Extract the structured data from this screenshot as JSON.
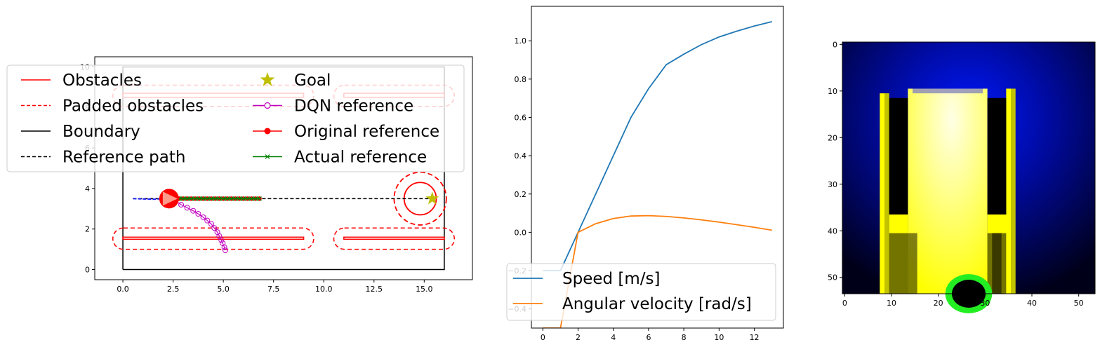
{
  "chart_data": [
    {
      "type": "line",
      "title": "",
      "xlim": [
        -1.4,
        17.4
      ],
      "ylim": [
        -0.5,
        10.5
      ],
      "x_ticks": [
        0,
        2.5,
        5,
        7.5,
        10,
        12.5,
        15
      ],
      "x_tick_labels": [
        "0.0",
        "2.5",
        "5.0",
        "7.5",
        "10.0",
        "12.5",
        "15.0"
      ],
      "y_ticks": [
        0,
        2,
        4,
        6,
        8,
        10
      ],
      "y_tick_labels": [
        "0",
        "2",
        "4",
        "6",
        "8",
        "10"
      ],
      "legend_position": "top-left",
      "legend": [
        {
          "label": "Obstacles",
          "color": "#ff0000",
          "style": "solid",
          "marker": "none"
        },
        {
          "label": "Padded obstacles",
          "color": "#ff0000",
          "style": "dashed",
          "marker": "none"
        },
        {
          "label": "Boundary",
          "color": "#000000",
          "style": "solid",
          "marker": "none"
        },
        {
          "label": "Reference path",
          "color": "#000000",
          "style": "dashed",
          "marker": "none"
        },
        {
          "label": "Goal",
          "color": "#bfbf00",
          "style": "none",
          "marker": "star"
        },
        {
          "label": "DQN reference",
          "color": "#bf00bf",
          "style": "solid",
          "marker": "open-circle"
        },
        {
          "label": "Original reference",
          "color": "#ff0000",
          "style": "solid",
          "marker": "filled-circle"
        },
        {
          "label": "Actual reference",
          "color": "#008000",
          "style": "solid",
          "marker": "x"
        }
      ],
      "boundary": [
        [
          0,
          0
        ],
        [
          16,
          0
        ],
        [
          16,
          10
        ],
        [
          0,
          10
        ],
        [
          0,
          0
        ]
      ],
      "obstacles": [
        {
          "x0": 0,
          "x1": 9,
          "y0": 8.5,
          "y1": 8.7
        },
        {
          "x0": 11,
          "x1": 16,
          "y0": 8.5,
          "y1": 8.7
        },
        {
          "x0": 0,
          "x1": 9,
          "y0": 1.5,
          "y1": 1.6
        },
        {
          "x0": 11,
          "x1": 16,
          "y0": 1.5,
          "y1": 1.6
        }
      ],
      "padded_obstacles": [
        {
          "x0": -0.5,
          "x1": 9.5,
          "y0": 8.05,
          "y1": 9.1
        },
        {
          "x0": 10.5,
          "x1": 16.5,
          "y0": 8.05,
          "y1": 9.1
        },
        {
          "x0": -0.5,
          "x1": 9.5,
          "y0": 1.0,
          "y1": 2.05
        },
        {
          "x0": 10.5,
          "x1": 16.5,
          "y0": 1.0,
          "y1": 2.05
        }
      ],
      "goal_circle": {
        "cx": 14.8,
        "cy": 3.5,
        "r_inner": 0.8,
        "r_padded": 1.3
      },
      "reference_path": {
        "x": [
          0.5,
          15.4
        ],
        "y": [
          3.5,
          3.5
        ]
      },
      "goal": {
        "x": 15.4,
        "y": 3.5
      },
      "robot": {
        "x": 2.3,
        "y": 3.5
      },
      "dqn_reference": {
        "x": [
          2.3,
          2.6,
          2.9,
          3.2,
          3.5,
          3.75,
          4.0,
          4.2,
          4.4,
          4.55,
          4.7,
          4.8,
          4.9,
          4.97,
          5.05,
          5.1
        ],
        "y": [
          3.5,
          3.4,
          3.2,
          3.05,
          2.9,
          2.75,
          2.58,
          2.42,
          2.25,
          2.05,
          1.85,
          1.65,
          1.45,
          1.3,
          1.1,
          0.95
        ]
      },
      "original_reference": {
        "x": [
          2.6,
          2.8,
          3.0,
          3.2,
          3.4,
          3.6,
          3.8,
          4.0,
          4.2,
          4.4,
          4.6,
          4.8,
          5.0,
          5.2,
          5.4,
          5.6,
          5.8,
          6.0,
          6.2,
          6.4,
          6.6,
          6.8
        ],
        "y": [
          3.5,
          3.5,
          3.5,
          3.5,
          3.5,
          3.5,
          3.5,
          3.5,
          3.5,
          3.5,
          3.5,
          3.5,
          3.5,
          3.5,
          3.5,
          3.5,
          3.5,
          3.5,
          3.5,
          3.5,
          3.5,
          3.5
        ]
      },
      "actual_reference": {
        "x": [
          2.6,
          2.8,
          3.0,
          3.2,
          3.4,
          3.6,
          3.8,
          4.0,
          4.2,
          4.4,
          4.6,
          4.8,
          5.0,
          5.2,
          5.4,
          5.6,
          5.8,
          6.0,
          6.2,
          6.4,
          6.6,
          6.8
        ],
        "y": [
          3.5,
          3.5,
          3.5,
          3.5,
          3.5,
          3.5,
          3.5,
          3.5,
          3.5,
          3.5,
          3.5,
          3.5,
          3.5,
          3.5,
          3.5,
          3.5,
          3.5,
          3.5,
          3.5,
          3.5,
          3.5,
          3.5
        ]
      },
      "trajectory": {
        "x": [
          0.5,
          1.0,
          1.5,
          2.0,
          2.3
        ],
        "y": [
          3.5,
          3.48,
          3.47,
          3.49,
          3.5
        ]
      }
    },
    {
      "type": "line",
      "title": "",
      "xlim": [
        -0.65,
        13.65
      ],
      "ylim": [
        -0.5,
        1.18
      ],
      "x_ticks": [
        0,
        2,
        4,
        6,
        8,
        10,
        12
      ],
      "x_tick_labels": [
        "0",
        "2",
        "4",
        "6",
        "8",
        "10",
        "12"
      ],
      "y_ticks": [
        -0.4,
        -0.2,
        0.0,
        0.2,
        0.4,
        0.6,
        0.8,
        1.0
      ],
      "y_tick_labels": [
        "−0.4",
        "−0.2",
        "0.0",
        "0.2",
        "0.4",
        "0.6",
        "0.8",
        "1.0"
      ],
      "legend_position": "bottom-left",
      "series": [
        {
          "name": "Speed [m/s]",
          "color": "#1f77b4",
          "x": [
            0,
            1,
            2,
            3,
            4,
            5,
            6,
            7,
            8,
            9,
            10,
            11,
            12,
            13
          ],
          "y": [
            -0.2,
            -0.2,
            0.0,
            0.2,
            0.4,
            0.6,
            0.75,
            0.875,
            0.93,
            0.98,
            1.02,
            1.05,
            1.077,
            1.1
          ]
        },
        {
          "name": "Angular velocity [rad/s]",
          "color": "#ff7f0e",
          "x": [
            0,
            1,
            2,
            3,
            4,
            5,
            6,
            7,
            8,
            9,
            10,
            11,
            12,
            13
          ],
          "y": [
            -0.5,
            -0.5,
            0.0,
            0.045,
            0.072,
            0.085,
            0.087,
            0.083,
            0.075,
            0.065,
            0.053,
            0.04,
            0.026,
            0.011
          ]
        }
      ]
    },
    {
      "type": "heatmap",
      "title": "",
      "width": 54,
      "height": 54,
      "x_ticks": [
        0,
        10,
        20,
        30,
        40,
        50
      ],
      "x_tick_labels": [
        "0",
        "10",
        "20",
        "30",
        "40",
        "50"
      ],
      "y_ticks": [
        0,
        10,
        20,
        30,
        40,
        50
      ],
      "y_tick_labels": [
        "0",
        "10",
        "20",
        "30",
        "40",
        "50"
      ],
      "colors": {
        "background": "#00004a",
        "glow": "#0010d0",
        "field": "#ffff00",
        "field_light": "#ffffd0",
        "wall": "#000000",
        "hole_edge": "#22ee22"
      }
    }
  ]
}
